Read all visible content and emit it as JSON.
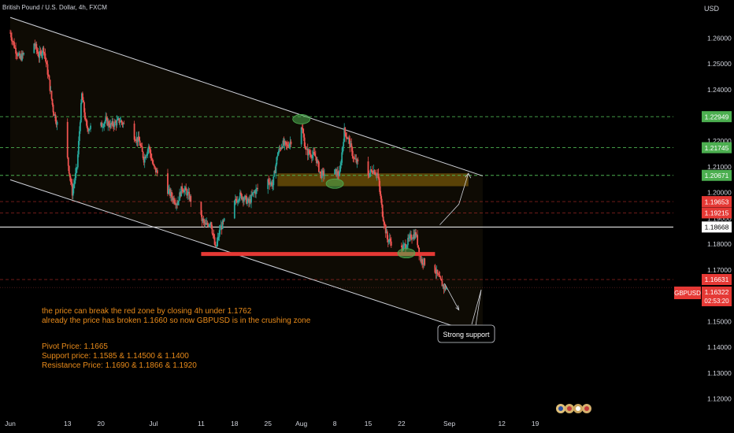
{
  "header": {
    "symbol_title": "British Pound / U.S. Dollar, 4h, FXCM",
    "currency": "USD"
  },
  "symbol_tag": {
    "name": "GBPUSD",
    "price": "1.16322",
    "countdown": "02:53:20"
  },
  "annotations": {
    "line1": "the price can break the red zone by closing 4h under 1.1762",
    "line2": "already the price has broken 1.1660 so now GBPUSD is in the crushing zone",
    "pivot": "Pivot Price: 1.1665",
    "support": "Support price: 1.1585 & 1.14500 & 1.1400",
    "resistance": "Resistance Price: 1.1690 & 1.1866  & 1.1920",
    "callout": "Strong support"
  },
  "colors": {
    "background": "#000000",
    "up": "#26a69a",
    "down": "#ef5350",
    "green_level": "#4caf50",
    "red_level": "#e53935",
    "annotation": "#e98b1a",
    "zone": "#b8860b",
    "white_level": "#ffffff"
  },
  "chart_data": {
    "type": "candlestick",
    "timeframe": "4h",
    "ylim": [
      1.115,
      1.272
    ],
    "y_ticks": [
      "1.26000",
      "1.25000",
      "1.24000",
      "1.23000",
      "1.22000",
      "1.21000",
      "1.20000",
      "1.19000",
      "1.18000",
      "1.17000",
      "1.16000",
      "1.15000",
      "1.14000",
      "1.13000",
      "1.12000"
    ],
    "x_ticks": [
      {
        "label": "Jun",
        "date": "2022-06-01"
      },
      {
        "label": "13",
        "date": "2022-06-13"
      },
      {
        "label": "20",
        "date": "2022-06-20"
      },
      {
        "label": "Jul",
        "date": "2022-07-01"
      },
      {
        "label": "11",
        "date": "2022-07-11"
      },
      {
        "label": "18",
        "date": "2022-07-18"
      },
      {
        "label": "25",
        "date": "2022-07-25"
      },
      {
        "label": "Aug",
        "date": "2022-08-01"
      },
      {
        "label": "8",
        "date": "2022-08-08"
      },
      {
        "label": "15",
        "date": "2022-08-15"
      },
      {
        "label": "22",
        "date": "2022-08-22"
      },
      {
        "label": "Sep",
        "date": "2022-09-01"
      },
      {
        "label": "12",
        "date": "2022-09-12"
      },
      {
        "label": "19",
        "date": "2022-09-19"
      }
    ],
    "path_close": [
      [
        "2022-06-01",
        1.262
      ],
      [
        "2022-06-02",
        1.256
      ],
      [
        "2022-06-03",
        1.252
      ],
      [
        "2022-06-06",
        1.258
      ],
      [
        "2022-06-07",
        1.253
      ],
      [
        "2022-06-08",
        1.256
      ],
      [
        "2022-06-09",
        1.245
      ],
      [
        "2022-06-10",
        1.232
      ],
      [
        "2022-06-13",
        1.213
      ],
      [
        "2022-06-14",
        1.2
      ],
      [
        "2022-06-15",
        1.21
      ],
      [
        "2022-06-16",
        1.238
      ],
      [
        "2022-06-17",
        1.225
      ],
      [
        "2022-06-20",
        1.226
      ],
      [
        "2022-06-21",
        1.228
      ],
      [
        "2022-06-22",
        1.226
      ],
      [
        "2022-06-24",
        1.228
      ],
      [
        "2022-06-27",
        1.222
      ],
      [
        "2022-06-28",
        1.22
      ],
      [
        "2022-06-29",
        1.213
      ],
      [
        "2022-06-30",
        1.218
      ],
      [
        "2022-07-01",
        1.21
      ],
      [
        "2022-07-05",
        1.198
      ],
      [
        "2022-07-06",
        1.196
      ],
      [
        "2022-07-07",
        1.202
      ],
      [
        "2022-07-08",
        1.2
      ],
      [
        "2022-07-11",
        1.19
      ],
      [
        "2022-07-12",
        1.187
      ],
      [
        "2022-07-13",
        1.189
      ],
      [
        "2022-07-14",
        1.178
      ],
      [
        "2022-07-15",
        1.186
      ],
      [
        "2022-07-18",
        1.196
      ],
      [
        "2022-07-19",
        1.199
      ],
      [
        "2022-07-20",
        1.198
      ],
      [
        "2022-07-21",
        1.196
      ],
      [
        "2022-07-22",
        1.2
      ],
      [
        "2022-07-25",
        1.205
      ],
      [
        "2022-07-26",
        1.203
      ],
      [
        "2022-07-27",
        1.215
      ],
      [
        "2022-07-28",
        1.219
      ],
      [
        "2022-07-29",
        1.218
      ],
      [
        "2022-08-01",
        1.226
      ],
      [
        "2022-08-02",
        1.216
      ],
      [
        "2022-08-03",
        1.215
      ],
      [
        "2022-08-04",
        1.214
      ],
      [
        "2022-08-05",
        1.207
      ],
      [
        "2022-08-08",
        1.208
      ],
      [
        "2022-08-09",
        1.207
      ],
      [
        "2022-08-10",
        1.224
      ],
      [
        "2022-08-11",
        1.22
      ],
      [
        "2022-08-12",
        1.213
      ],
      [
        "2022-08-15",
        1.207
      ],
      [
        "2022-08-16",
        1.209
      ],
      [
        "2022-08-17",
        1.207
      ],
      [
        "2022-08-18",
        1.192
      ],
      [
        "2022-08-19",
        1.182
      ],
      [
        "2022-08-22",
        1.178
      ],
      [
        "2022-08-23",
        1.18
      ],
      [
        "2022-08-24",
        1.183
      ],
      [
        "2022-08-25",
        1.184
      ],
      [
        "2022-08-26",
        1.174
      ],
      [
        "2022-08-29",
        1.17
      ],
      [
        "2022-08-30",
        1.166
      ],
      [
        "2022-08-31",
        1.163
      ]
    ],
    "horizontal_levels": [
      {
        "price": 1.22949,
        "label": "1.22949",
        "color": "#4caf50",
        "style": "dashed"
      },
      {
        "price": 1.21745,
        "label": "1.21745",
        "color": "#4caf50",
        "style": "dashed"
      },
      {
        "price": 1.20671,
        "label": "1.20671",
        "color": "#4caf50",
        "style": "dashed"
      },
      {
        "price": 1.19653,
        "label": "1.19653",
        "color": "#e53935",
        "style": "dashed"
      },
      {
        "price": 1.19215,
        "label": "1.19215",
        "color": "#e53935",
        "style": "dashed"
      },
      {
        "price": 1.18668,
        "label": "1.18668",
        "color": "#ffffff",
        "style": "solid"
      },
      {
        "price": 1.16631,
        "label": "1.16631",
        "color": "#e53935",
        "style": "dashed"
      }
    ],
    "current_price": {
      "price": 1.16322,
      "label": "1.16322"
    },
    "red_zone": {
      "price": 1.1762,
      "from": "2022-07-11",
      "to": "2022-08-29"
    },
    "resistance_box": {
      "from": "2022-07-27",
      "to": "2022-09-05",
      "top": 1.2075,
      "bottom": 1.2025
    },
    "channel": {
      "upper": [
        [
          "2022-06-01",
          1.268
        ],
        [
          "2022-09-08",
          1.2065
        ]
      ],
      "lower": [
        [
          "2022-06-01",
          1.205
        ],
        [
          "2022-09-08",
          1.1445
        ]
      ]
    },
    "markers": [
      {
        "date": "2022-08-01",
        "price": 1.2285
      },
      {
        "date": "2022-08-08",
        "price": 1.2035
      },
      {
        "date": "2022-08-23",
        "price": 1.1765
      }
    ],
    "projection_up": [
      [
        "2022-08-30",
        1.1875
      ],
      [
        "2022-09-03",
        1.1955
      ],
      [
        "2022-09-05",
        1.2075
      ]
    ],
    "projection_down": [
      [
        "2022-08-31",
        1.1648
      ],
      [
        "2022-09-03",
        1.1545
      ]
    ]
  }
}
